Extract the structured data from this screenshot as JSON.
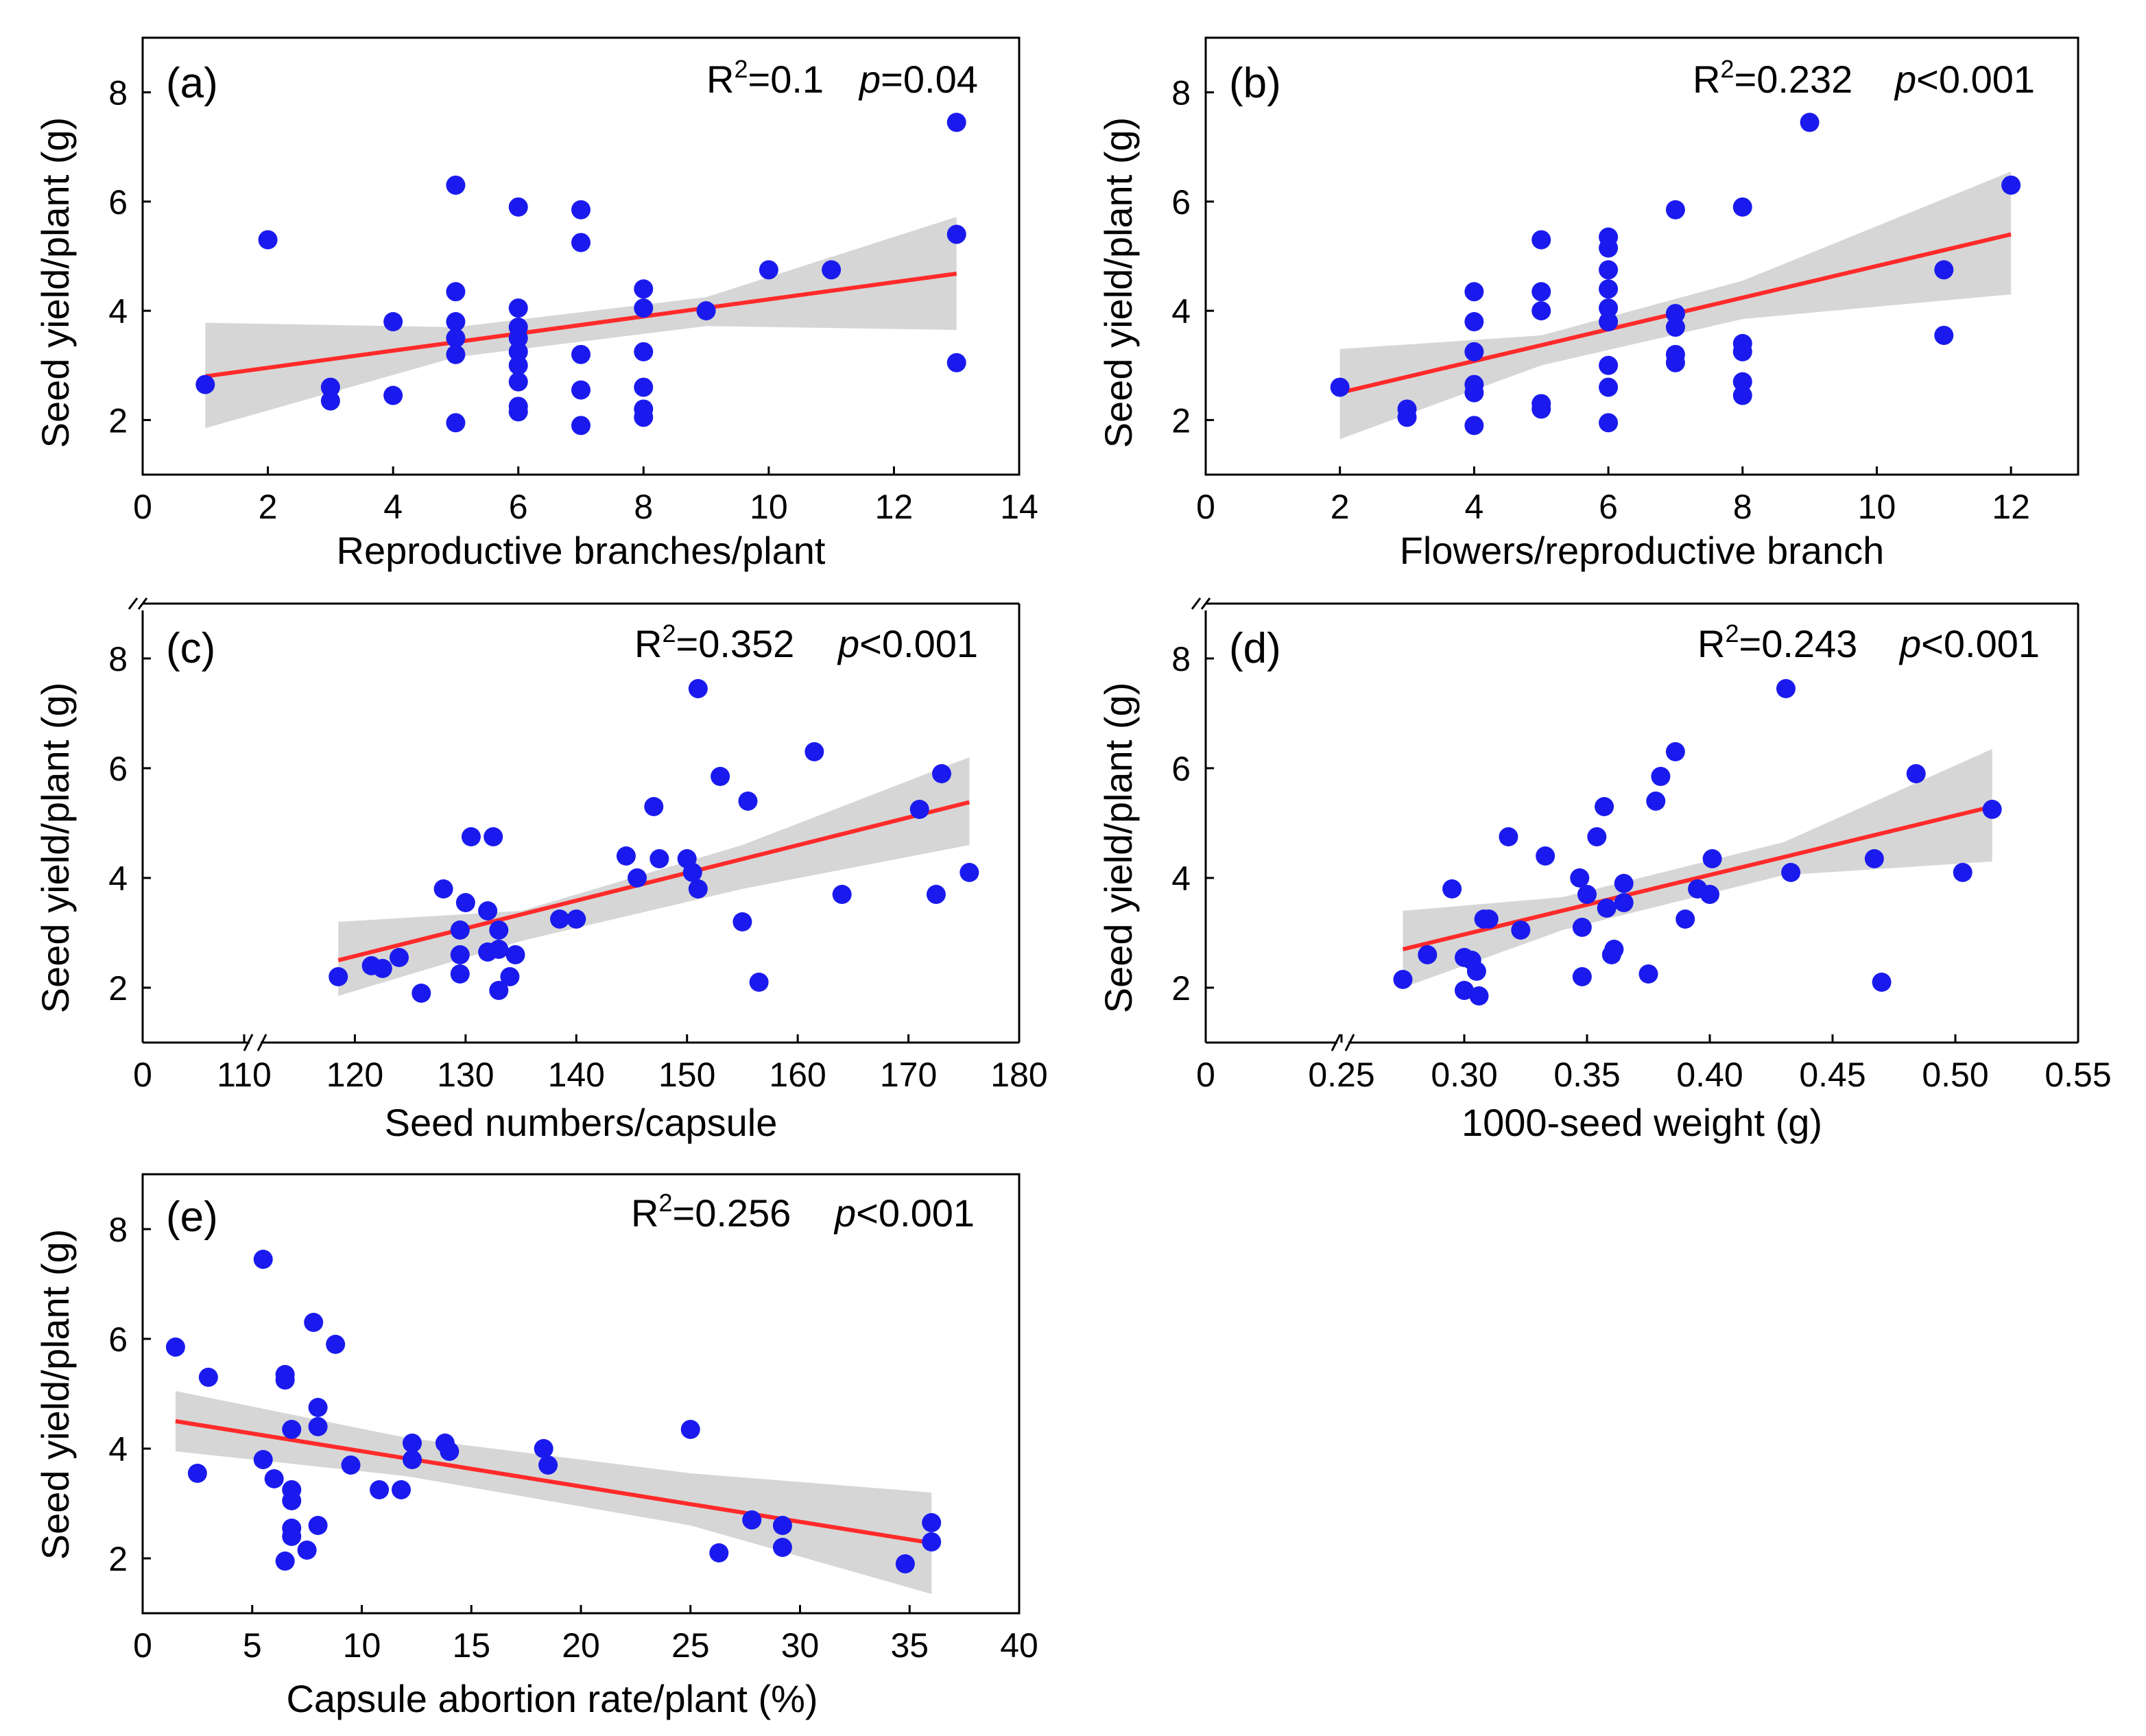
{
  "figure": {
    "ylabel": "Seed yield/plant (g)",
    "colors": {
      "points": "#1a1aee",
      "fit": "#ff2a2a",
      "ci": "#d6d6d6"
    }
  },
  "chart_data": [
    {
      "type": "scatter",
      "panel_label": "(a)",
      "r2_text": "R²=0.1",
      "r2_label": "R",
      "r2_sup": "2",
      "r2_value": "=0.1",
      "p_symbol": "p",
      "p_value": "=0.04",
      "xlabel": "Reproductive branches/plant",
      "ylabel": "Seed yield/plant (g)",
      "xlim": [
        0,
        14
      ],
      "ylim": [
        1,
        9
      ],
      "xticks": [
        0,
        2,
        4,
        6,
        8,
        10,
        12,
        14
      ],
      "xtick_labels": [
        "0",
        "2",
        "4",
        "6",
        "8",
        "10",
        "12",
        "14"
      ],
      "yticks": [
        2,
        4,
        6,
        8
      ],
      "ytick_labels": [
        "2",
        "4",
        "6",
        "8"
      ],
      "axis_break": false,
      "fit": {
        "x": [
          1,
          13
        ],
        "y": [
          2.8,
          4.68
        ]
      },
      "ci": {
        "x": [
          1,
          5,
          9,
          13
        ],
        "upper": [
          3.78,
          3.7,
          4.25,
          5.72
        ],
        "lower": [
          1.85,
          3.15,
          3.72,
          3.65
        ]
      },
      "points": [
        [
          1,
          2.65
        ],
        [
          2,
          5.3
        ],
        [
          3,
          2.6
        ],
        [
          3,
          2.35
        ],
        [
          4,
          2.45
        ],
        [
          4,
          3.8
        ],
        [
          5,
          6.3
        ],
        [
          5,
          4.35
        ],
        [
          5,
          3.8
        ],
        [
          5,
          3.5
        ],
        [
          5,
          3.2
        ],
        [
          5,
          1.95
        ],
        [
          6,
          5.9
        ],
        [
          6,
          4.05
        ],
        [
          6,
          3.7
        ],
        [
          6,
          3.5
        ],
        [
          6,
          3.25
        ],
        [
          6,
          3.0
        ],
        [
          6,
          2.7
        ],
        [
          6,
          2.25
        ],
        [
          6,
          2.15
        ],
        [
          7,
          5.85
        ],
        [
          7,
          5.25
        ],
        [
          7,
          3.2
        ],
        [
          7,
          2.55
        ],
        [
          7,
          1.9
        ],
        [
          8,
          4.4
        ],
        [
          8,
          4.05
        ],
        [
          8,
          3.25
        ],
        [
          8,
          2.6
        ],
        [
          8,
          2.2
        ],
        [
          8,
          2.05
        ],
        [
          9,
          4.0
        ],
        [
          10,
          4.75
        ],
        [
          11,
          4.75
        ],
        [
          13,
          7.45
        ],
        [
          13,
          5.4
        ],
        [
          13,
          3.05
        ]
      ]
    },
    {
      "type": "scatter",
      "panel_label": "(b)",
      "r2_text": "R²=0.232",
      "r2_label": "R",
      "r2_sup": "2",
      "r2_value": "=0.232",
      "p_symbol": "p",
      "p_value": "<0.001",
      "xlabel": "Flowers/reproductive branch",
      "ylabel": "Seed yield/plant (g)",
      "xlim": [
        0,
        13
      ],
      "ylim": [
        1,
        9
      ],
      "xticks": [
        0,
        2,
        4,
        6,
        8,
        10,
        12
      ],
      "xtick_labels": [
        "0",
        "2",
        "4",
        "6",
        "8",
        "10",
        "12"
      ],
      "yticks": [
        2,
        4,
        6,
        8
      ],
      "ytick_labels": [
        "2",
        "4",
        "6",
        "8"
      ],
      "axis_break": false,
      "fit": {
        "x": [
          2,
          12
        ],
        "y": [
          2.5,
          5.4
        ]
      },
      "ci": {
        "x": [
          2,
          5,
          8,
          12
        ],
        "upper": [
          3.3,
          3.55,
          4.55,
          6.55
        ],
        "lower": [
          1.65,
          3.0,
          3.85,
          4.3
        ]
      },
      "points": [
        [
          2,
          2.6
        ],
        [
          3,
          2.2
        ],
        [
          3,
          2.05
        ],
        [
          4,
          4.35
        ],
        [
          4,
          3.8
        ],
        [
          4,
          3.25
        ],
        [
          4,
          2.65
        ],
        [
          4,
          2.5
        ],
        [
          4,
          1.9
        ],
        [
          5,
          5.3
        ],
        [
          5,
          4.35
        ],
        [
          5,
          4.0
        ],
        [
          5,
          2.3
        ],
        [
          5,
          2.2
        ],
        [
          6,
          5.35
        ],
        [
          6,
          5.15
        ],
        [
          6,
          4.75
        ],
        [
          6,
          4.4
        ],
        [
          6,
          4.05
        ],
        [
          6,
          3.8
        ],
        [
          6,
          3.0
        ],
        [
          6,
          2.6
        ],
        [
          6,
          1.95
        ],
        [
          7,
          5.85
        ],
        [
          7,
          3.95
        ],
        [
          7,
          3.7
        ],
        [
          7,
          3.2
        ],
        [
          7,
          3.05
        ],
        [
          8,
          5.9
        ],
        [
          8,
          3.4
        ],
        [
          8,
          3.25
        ],
        [
          8,
          2.7
        ],
        [
          8,
          2.45
        ],
        [
          9,
          7.45
        ],
        [
          11,
          4.75
        ],
        [
          11,
          3.55
        ],
        [
          12,
          6.3
        ]
      ]
    },
    {
      "type": "scatter",
      "panel_label": "(c)",
      "r2_text": "R²=0.352",
      "r2_label": "R",
      "r2_sup": "2",
      "r2_value": "=0.352",
      "p_symbol": "p",
      "p_value": "<0.001",
      "xlabel": "Seed numbers/capsule",
      "ylabel": "Seed yield/plant (g)",
      "xlim": [
        110,
        180
      ],
      "ylim": [
        1,
        9
      ],
      "xticks": [
        0,
        110,
        120,
        130,
        140,
        150,
        160,
        170,
        180
      ],
      "xtick_labels": [
        "0",
        "110",
        "120",
        "130",
        "140",
        "150",
        "160",
        "170",
        "180"
      ],
      "yticks": [
        2,
        4,
        6,
        8
      ],
      "ytick_labels": [
        "2",
        "4",
        "6",
        "8"
      ],
      "axis_break": true,
      "fit": {
        "x": [
          118.5,
          175.5
        ],
        "y": [
          2.5,
          5.38
        ]
      },
      "ci": {
        "x": [
          118.5,
          135,
          155,
          175.5
        ],
        "upper": [
          3.2,
          3.4,
          4.6,
          6.2
        ],
        "lower": [
          1.85,
          2.85,
          3.8,
          4.6
        ]
      },
      "points": [
        [
          118.5,
          2.2
        ],
        [
          121.5,
          2.4
        ],
        [
          122.5,
          2.35
        ],
        [
          124,
          2.55
        ],
        [
          126,
          1.9
        ],
        [
          128,
          3.8
        ],
        [
          129.5,
          3.05
        ],
        [
          129.5,
          2.6
        ],
        [
          129.5,
          2.25
        ],
        [
          130,
          3.55
        ],
        [
          130.5,
          4.75
        ],
        [
          132,
          2.65
        ],
        [
          132,
          3.4
        ],
        [
          132.5,
          4.75
        ],
        [
          133,
          3.05
        ],
        [
          133,
          2.7
        ],
        [
          133,
          1.95
        ],
        [
          134,
          2.2
        ],
        [
          134.5,
          2.6
        ],
        [
          138.5,
          3.25
        ],
        [
          140,
          3.25
        ],
        [
          144.5,
          4.4
        ],
        [
          145.5,
          4.0
        ],
        [
          147,
          5.3
        ],
        [
          147.5,
          4.35
        ],
        [
          150,
          4.35
        ],
        [
          150.5,
          4.1
        ],
        [
          151,
          3.8
        ],
        [
          151,
          7.45
        ],
        [
          153,
          5.85
        ],
        [
          155,
          3.2
        ],
        [
          155.5,
          5.4
        ],
        [
          156.5,
          2.1
        ],
        [
          161.5,
          6.3
        ],
        [
          164,
          3.7
        ],
        [
          171,
          5.25
        ],
        [
          172.5,
          3.7
        ],
        [
          173,
          5.9
        ],
        [
          175.5,
          4.1
        ]
      ]
    },
    {
      "type": "scatter",
      "panel_label": "(d)",
      "r2_text": "R²=0.243",
      "r2_label": "R",
      "r2_sup": "2",
      "r2_value": "=0.243",
      "p_symbol": "p",
      "p_value": "<0.001",
      "xlabel": "1000-seed weight (g)",
      "ylabel": "Seed yield/plant (g)",
      "xlim": [
        0.25,
        0.55
      ],
      "ylim": [
        1,
        9
      ],
      "xticks": [
        0,
        0.25,
        0.3,
        0.35,
        0.4,
        0.45,
        0.5,
        0.55
      ],
      "xtick_labels": [
        "0",
        "0.25",
        "0.30",
        "0.35",
        "0.40",
        "0.45",
        "0.50",
        "0.55"
      ],
      "yticks": [
        2,
        4,
        6,
        8
      ],
      "ytick_labels": [
        "2",
        "4",
        "6",
        "8"
      ],
      "axis_break": true,
      "fit": {
        "x": [
          0.275,
          0.515
        ],
        "y": [
          2.7,
          5.3
        ]
      },
      "ci": {
        "x": [
          0.275,
          0.34,
          0.43,
          0.515
        ],
        "upper": [
          3.4,
          3.65,
          4.65,
          6.35
        ],
        "lower": [
          2.0,
          3.05,
          4.05,
          4.3
        ]
      },
      "points": [
        [
          0.275,
          2.15
        ],
        [
          0.285,
          2.6
        ],
        [
          0.295,
          3.8
        ],
        [
          0.3,
          2.55
        ],
        [
          0.3,
          1.95
        ],
        [
          0.303,
          2.5
        ],
        [
          0.305,
          2.3
        ],
        [
          0.306,
          1.85
        ],
        [
          0.308,
          3.25
        ],
        [
          0.31,
          3.25
        ],
        [
          0.318,
          4.75
        ],
        [
          0.323,
          3.05
        ],
        [
          0.333,
          4.4
        ],
        [
          0.347,
          4.0
        ],
        [
          0.348,
          3.1
        ],
        [
          0.348,
          2.2
        ],
        [
          0.35,
          3.7
        ],
        [
          0.354,
          4.75
        ],
        [
          0.357,
          5.3
        ],
        [
          0.358,
          3.45
        ],
        [
          0.36,
          2.6
        ],
        [
          0.361,
          2.7
        ],
        [
          0.365,
          3.55
        ],
        [
          0.365,
          3.9
        ],
        [
          0.375,
          2.25
        ],
        [
          0.378,
          5.4
        ],
        [
          0.38,
          5.85
        ],
        [
          0.386,
          6.3
        ],
        [
          0.39,
          3.25
        ],
        [
          0.395,
          3.8
        ],
        [
          0.4,
          3.7
        ],
        [
          0.401,
          4.35
        ],
        [
          0.431,
          7.45
        ],
        [
          0.433,
          4.1
        ],
        [
          0.467,
          4.35
        ],
        [
          0.47,
          2.1
        ],
        [
          0.484,
          5.9
        ],
        [
          0.503,
          4.1
        ],
        [
          0.515,
          5.25
        ]
      ]
    },
    {
      "type": "scatter",
      "panel_label": "(e)",
      "r2_text": "R²=0.256",
      "r2_label": "R",
      "r2_sup": "2",
      "r2_value": "=0.256",
      "p_symbol": "p",
      "p_value": "<0.001",
      "xlabel": "Capsule abortion rate/plant (%)",
      "ylabel": "Seed yield/plant (g)",
      "xlim": [
        0,
        40
      ],
      "ylim": [
        1,
        9
      ],
      "xticks": [
        0,
        5,
        10,
        15,
        20,
        25,
        30,
        35,
        40
      ],
      "xtick_labels": [
        "0",
        "5",
        "10",
        "15",
        "20",
        "25",
        "30",
        "35",
        "40"
      ],
      "yticks": [
        2,
        4,
        6,
        8
      ],
      "ytick_labels": [
        "2",
        "4",
        "6",
        "8"
      ],
      "axis_break": false,
      "fit": {
        "x": [
          1.5,
          36
        ],
        "y": [
          4.5,
          2.28
        ]
      },
      "ci": {
        "x": [
          1.5,
          12,
          25,
          36
        ],
        "upper": [
          5.05,
          4.2,
          3.55,
          3.2
        ],
        "lower": [
          3.95,
          3.5,
          2.6,
          1.35
        ]
      },
      "points": [
        [
          1.5,
          5.85
        ],
        [
          2.5,
          3.55
        ],
        [
          3,
          5.3
        ],
        [
          5.5,
          3.8
        ],
        [
          5.5,
          7.45
        ],
        [
          6,
          3.45
        ],
        [
          6.5,
          5.35
        ],
        [
          6.5,
          5.25
        ],
        [
          6.5,
          1.95
        ],
        [
          6.8,
          4.35
        ],
        [
          6.8,
          3.25
        ],
        [
          6.8,
          3.05
        ],
        [
          6.8,
          2.55
        ],
        [
          6.8,
          2.4
        ],
        [
          7.5,
          2.15
        ],
        [
          7.8,
          6.3
        ],
        [
          8,
          4.75
        ],
        [
          8,
          4.4
        ],
        [
          8,
          2.6
        ],
        [
          8.8,
          5.9
        ],
        [
          9.5,
          3.7
        ],
        [
          10.8,
          3.25
        ],
        [
          11.8,
          3.25
        ],
        [
          12.3,
          4.1
        ],
        [
          12.3,
          3.8
        ],
        [
          13.8,
          4.1
        ],
        [
          14,
          3.95
        ],
        [
          18.3,
          4.0
        ],
        [
          18.5,
          3.7
        ],
        [
          25,
          4.35
        ],
        [
          26.3,
          2.1
        ],
        [
          27.8,
          2.7
        ],
        [
          29.2,
          2.6
        ],
        [
          29.2,
          2.2
        ],
        [
          34.8,
          1.9
        ],
        [
          36,
          2.65
        ],
        [
          36,
          2.3
        ]
      ]
    }
  ]
}
